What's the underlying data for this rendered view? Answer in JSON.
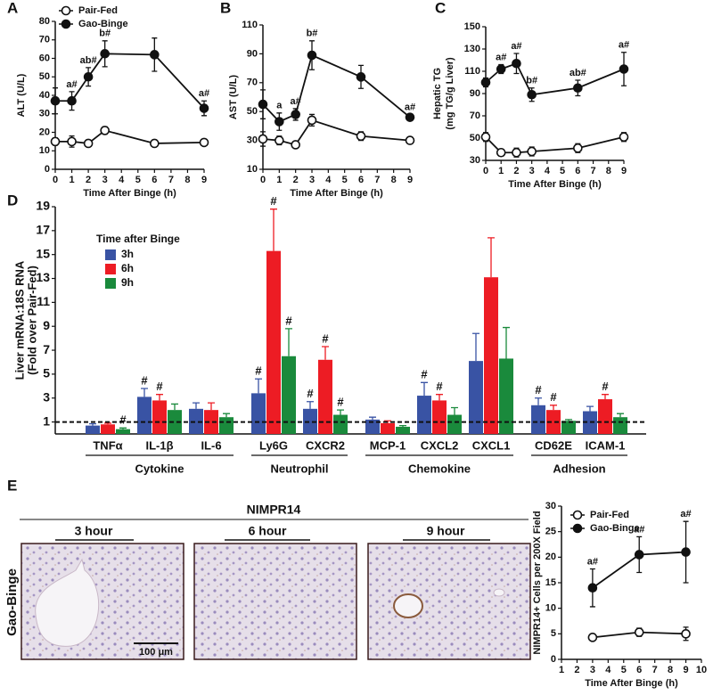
{
  "chart_data": [
    {
      "type": "line",
      "panel_label": "A",
      "xlabel": "Time After Binge (h)",
      "ylabel": [
        "ALT (U/L)"
      ],
      "xlim": [
        0,
        9
      ],
      "xticks": [
        0,
        1,
        2,
        3,
        4,
        5,
        6,
        7,
        8,
        9
      ],
      "ylim": [
        0,
        80
      ],
      "yticks": [
        0,
        10,
        20,
        30,
        40,
        50,
        60,
        70,
        80
      ],
      "legend": "upper left",
      "series": [
        {
          "name": "Pair-Fed",
          "color": "#111111",
          "fill": "#ffffff",
          "x": [
            0,
            1,
            2,
            3,
            6,
            9
          ],
          "values": [
            15,
            15,
            14,
            21,
            14,
            14.5
          ],
          "errors": [
            2,
            3,
            1,
            2,
            1,
            1
          ],
          "point_labels": [
            null,
            null,
            null,
            null,
            null,
            null
          ]
        },
        {
          "name": "Gao-Binge",
          "color": "#111111",
          "fill": "#111111",
          "x": [
            0,
            1,
            2,
            3,
            6,
            9
          ],
          "values": [
            37,
            37,
            50,
            62.5,
            62,
            33
          ],
          "errors": [
            7,
            5,
            5,
            7,
            9,
            4
          ],
          "point_labels": [
            null,
            "a#",
            "ab#",
            "b#",
            null,
            "a#"
          ]
        }
      ]
    },
    {
      "type": "line",
      "panel_label": "B",
      "xlabel": "Time After Binge (h)",
      "ylabel": [
        "AST (U/L)"
      ],
      "xlim": [
        0,
        9
      ],
      "xticks": [
        0,
        1,
        2,
        3,
        4,
        5,
        6,
        7,
        8,
        9
      ],
      "ylim": [
        10,
        110
      ],
      "yticks": [
        10,
        30,
        50,
        70,
        90,
        110
      ],
      "series": [
        {
          "color": "#111111",
          "fill": "#ffffff",
          "x": [
            0,
            1,
            2,
            3,
            6,
            9
          ],
          "values": [
            31,
            30,
            27,
            44,
            33,
            30
          ],
          "errors": [
            5,
            3,
            1,
            4,
            3,
            1
          ],
          "point_labels": [
            null,
            null,
            null,
            null,
            null,
            null
          ]
        },
        {
          "color": "#111111",
          "fill": "#111111",
          "x": [
            0,
            1,
            2,
            3,
            6,
            9
          ],
          "values": [
            55,
            43,
            48,
            89,
            74,
            46
          ],
          "errors": [
            10,
            6,
            4,
            10,
            8,
            2
          ],
          "point_labels": [
            null,
            "a",
            "a#",
            "b#",
            null,
            "a#"
          ]
        }
      ]
    },
    {
      "type": "line",
      "panel_label": "C",
      "xlabel": "Time After Binge (h)",
      "ylabel": [
        "Hepatic TG",
        "(mg TG/g Liver)"
      ],
      "xlim": [
        0,
        9
      ],
      "xticks": [
        0,
        1,
        2,
        3,
        4,
        5,
        6,
        7,
        8,
        9
      ],
      "ylim": [
        30,
        150
      ],
      "yticks": [
        30,
        50,
        70,
        90,
        110,
        130,
        150
      ],
      "series": [
        {
          "color": "#111111",
          "fill": "#ffffff",
          "x": [
            0,
            1,
            2,
            3,
            6,
            9
          ],
          "values": [
            51,
            37,
            37,
            38,
            41,
            51
          ],
          "errors": [
            4,
            3,
            4,
            4,
            4,
            4
          ],
          "point_labels": [
            null,
            null,
            null,
            null,
            null,
            null
          ]
        },
        {
          "color": "#111111",
          "fill": "#111111",
          "x": [
            0,
            1,
            2,
            3,
            6,
            9
          ],
          "values": [
            100,
            112,
            117,
            89,
            95,
            112
          ],
          "errors": [
            4,
            4,
            9,
            6,
            7,
            15
          ],
          "point_labels": [
            null,
            "a#",
            "a#",
            "b#",
            "ab#",
            "a#"
          ]
        }
      ]
    },
    {
      "type": "bar",
      "panel_label": "D",
      "ylabel": [
        "Liver mRNA:18S  RNA",
        "(Fold over  Pair-Fed)"
      ],
      "ylim": [
        0,
        19
      ],
      "yticks": [
        1,
        3,
        5,
        7,
        9,
        11,
        13,
        15,
        17,
        19
      ],
      "reference_line": 1,
      "legend_title": "Time after Binge",
      "legend": "upper left",
      "groups": [
        {
          "name": "Cytokine",
          "categories": [
            "TNFα",
            "IL-1β",
            "IL-6"
          ]
        },
        {
          "name": "Neutrophil",
          "categories": [
            "Ly6G",
            "CXCR2"
          ]
        },
        {
          "name": "Chemokine",
          "categories": [
            "MCP-1",
            "CXCL2",
            "CXCL1"
          ]
        },
        {
          "name": "Adhesion",
          "categories": [
            "CD62E",
            "ICAM-1"
          ]
        }
      ],
      "series": [
        {
          "name": "3h",
          "color": "#3953a4",
          "values": [
            0.7,
            3.1,
            2.1,
            3.4,
            2.1,
            1.2,
            3.2,
            6.1,
            2.4,
            1.9
          ],
          "errors": [
            0.15,
            0.7,
            0.5,
            1.2,
            0.6,
            0.2,
            1.1,
            2.3,
            0.6,
            0.4
          ],
          "point_labels": [
            null,
            "#",
            null,
            "#",
            "#",
            null,
            "#",
            null,
            "#",
            null
          ]
        },
        {
          "name": "6h",
          "color": "#ed1c24",
          "values": [
            0.8,
            2.8,
            2.0,
            15.3,
            6.2,
            0.9,
            2.8,
            13.1,
            2.0,
            2.9
          ],
          "errors": [
            0.1,
            0.5,
            0.6,
            3.5,
            1.1,
            0.2,
            0.5,
            3.3,
            0.4,
            0.4
          ],
          "point_labels": [
            null,
            "#",
            null,
            "#",
            "#",
            null,
            "#",
            null,
            "#",
            "#"
          ]
        },
        {
          "name": "9h",
          "color": "#1a8a3c",
          "values": [
            0.4,
            2.0,
            1.4,
            6.5,
            1.6,
            0.6,
            1.6,
            6.3,
            1.1,
            1.4
          ],
          "errors": [
            0.1,
            0.5,
            0.3,
            2.3,
            0.4,
            0.1,
            0.6,
            2.6,
            0.1,
            0.3
          ],
          "point_labels": [
            "#",
            null,
            null,
            "#",
            "#",
            null,
            null,
            null,
            null,
            null
          ]
        }
      ]
    },
    {
      "type": "line",
      "panel_label": "E",
      "xlabel": "Time After Binge (h)",
      "ylabel": [
        "NIMPR14+ Cells per 200X Field"
      ],
      "xlim": [
        1,
        10
      ],
      "xticks": [
        1,
        2,
        3,
        4,
        5,
        6,
        7,
        8,
        9,
        10
      ],
      "ylim": [
        0,
        30
      ],
      "yticks": [
        0,
        5,
        10,
        15,
        20,
        25,
        30
      ],
      "legend": "upper left",
      "series": [
        {
          "name": "Pair-Fed",
          "color": "#111111",
          "fill": "#ffffff",
          "x": [
            3,
            6,
            9
          ],
          "values": [
            4.3,
            5.3,
            5
          ],
          "errors": [
            0.3,
            0.8,
            1.3
          ],
          "point_labels": [
            null,
            null,
            null
          ]
        },
        {
          "name": "Gao-Binge",
          "color": "#111111",
          "fill": "#111111",
          "x": [
            3,
            6,
            9
          ],
          "values": [
            14,
            20.5,
            21
          ],
          "errors": [
            3.7,
            3.5,
            6
          ],
          "point_labels": [
            "a#",
            "a#",
            "a#"
          ]
        }
      ]
    }
  ],
  "micrographs": {
    "title": "NIMPR14",
    "labels": [
      "3 hour",
      "6 hour",
      "9 hour"
    ],
    "row_label": "Gao-Binge",
    "scale_bar": "100 μm"
  }
}
